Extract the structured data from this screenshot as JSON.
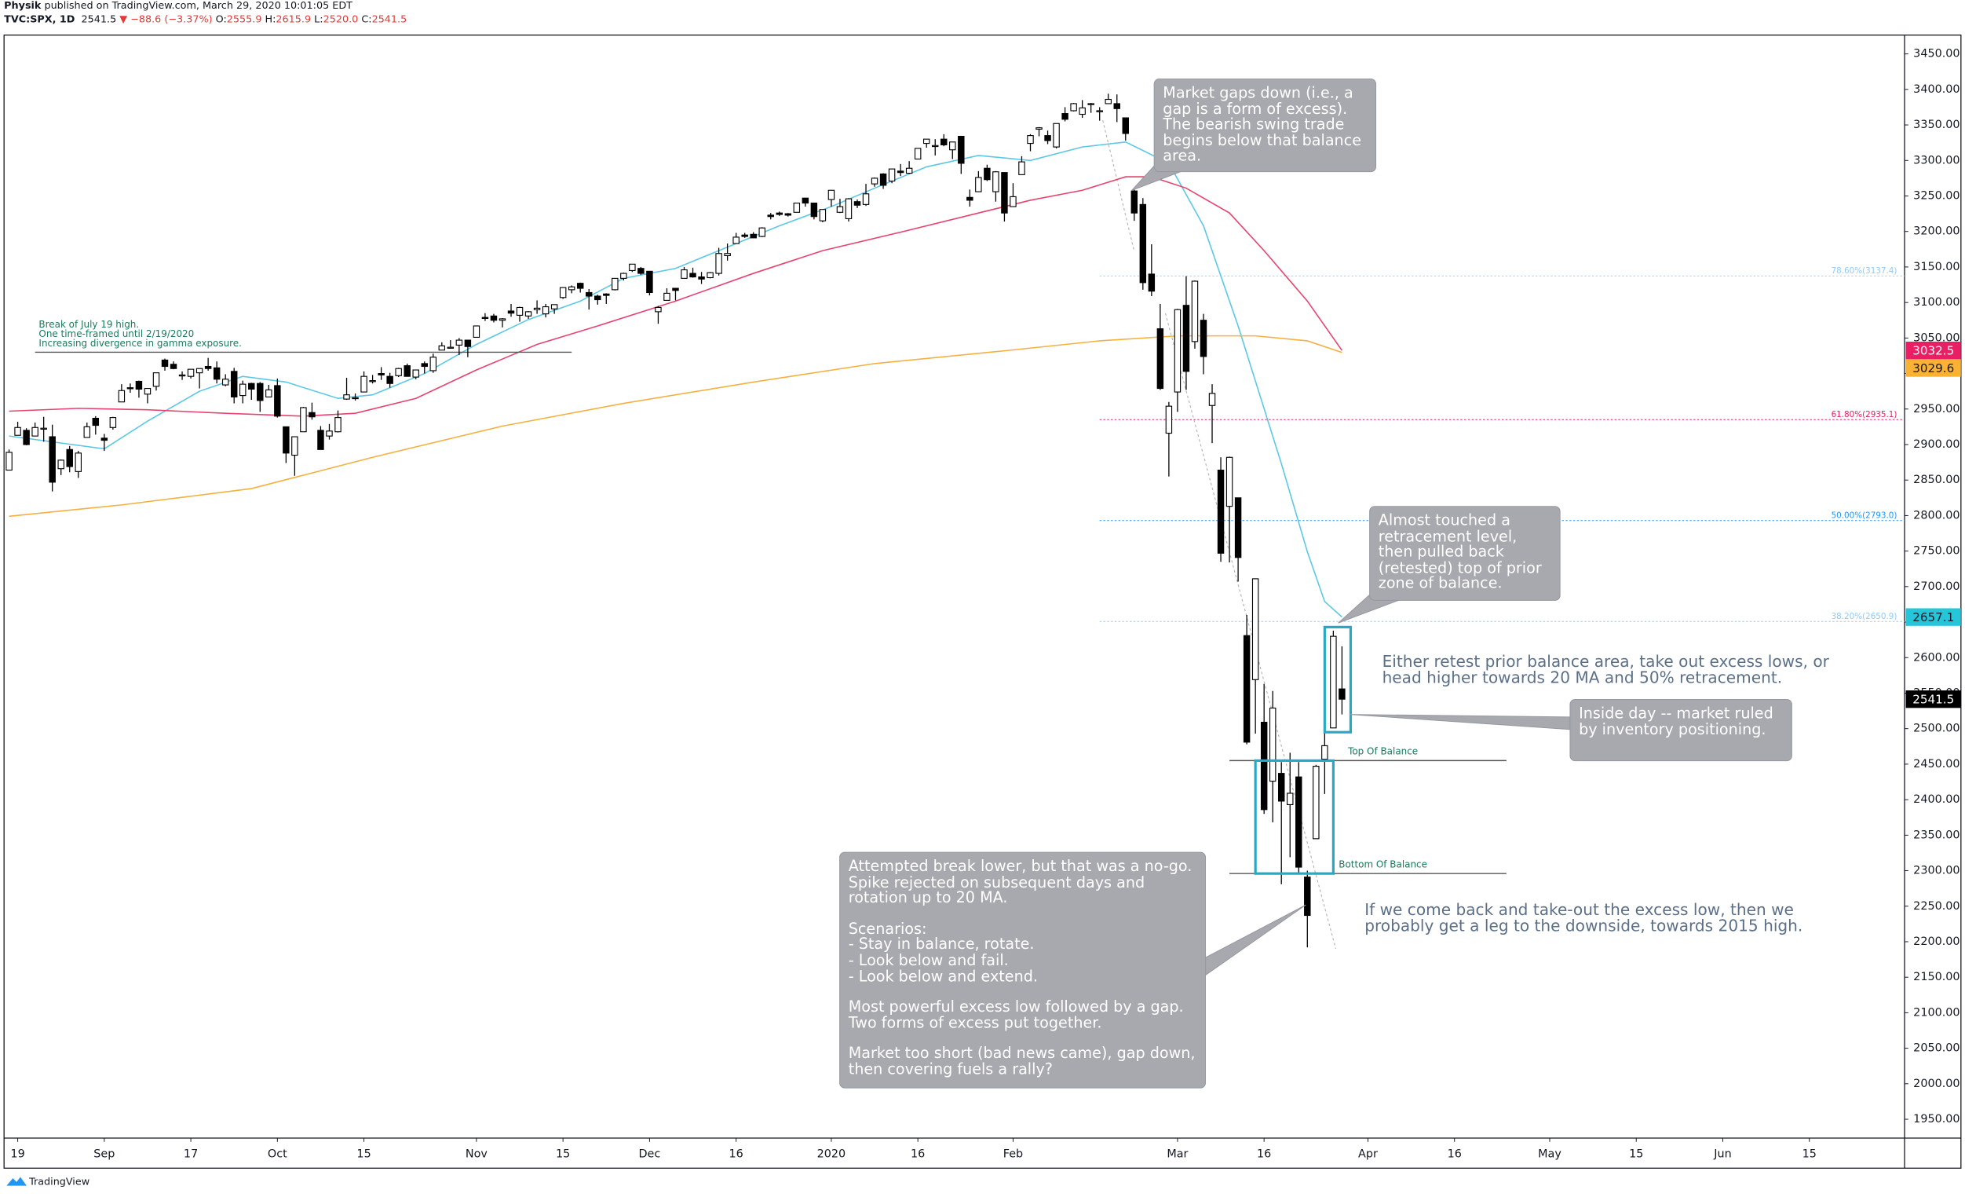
{
  "header": {
    "author": "Physik",
    "published": "published on TradingView.com, March 29, 2020 10:01:05 EDT",
    "symbol": "TVC:SPX, 1D",
    "last": "2541.5",
    "change": "▼ −88.6 (−3.37%)",
    "ohlc": [
      {
        "label": "O:",
        "value": "2555.9"
      },
      {
        "label": "H:",
        "value": "2615.9"
      },
      {
        "label": "L:",
        "value": "2520.0"
      },
      {
        "label": "C:",
        "value": "2541.5"
      }
    ]
  },
  "footer": {
    "brand": "TradingView"
  },
  "chart_data": {
    "type": "candlestick",
    "up_color": "#ffffff",
    "down_color": "#000000",
    "border_color": "#000000",
    "x": [
      0,
      1,
      2,
      3,
      4,
      5,
      6,
      7,
      8,
      9,
      10,
      11,
      12,
      13,
      14,
      15,
      16,
      17,
      18,
      19,
      20,
      21,
      22,
      23,
      24,
      25,
      26,
      27,
      28,
      29,
      30,
      31,
      32,
      33,
      34,
      35,
      36,
      37,
      38,
      39,
      40,
      41,
      42,
      43,
      44,
      45,
      46,
      47,
      48,
      49,
      50,
      51,
      52,
      53,
      54,
      55,
      56,
      57,
      58,
      59,
      60,
      61,
      62,
      63,
      64,
      65,
      66,
      67,
      68,
      69,
      70,
      71,
      72,
      73,
      74,
      75,
      76,
      77,
      78,
      79,
      80,
      81,
      82,
      83,
      84,
      85,
      86,
      87,
      88,
      89,
      90,
      91,
      92,
      93,
      94,
      95,
      96,
      97,
      98,
      99,
      100,
      101,
      102,
      103,
      104,
      105,
      106,
      107,
      108,
      109,
      110,
      111,
      112,
      113,
      114,
      115,
      116,
      117,
      118,
      119,
      120,
      121,
      122,
      123,
      124,
      125,
      126,
      127,
      128,
      129,
      130,
      131,
      132,
      133,
      134,
      135,
      136,
      137,
      138,
      139,
      140,
      141,
      142,
      143,
      144,
      145,
      146,
      147,
      148,
      149,
      150,
      151,
      152,
      153,
      154
    ],
    "open": [
      2864,
      2913,
      2920,
      2912,
      2923,
      2911,
      2866,
      2893,
      2862,
      2910,
      2937,
      2909,
      2924,
      2960,
      2980,
      2989,
      2971,
      2982,
      3019,
      3013,
      2997,
      2996,
      3001,
      3010,
      3008,
      2984,
      3003,
      2969,
      2986,
      2986,
      2967,
      2983,
      2925,
      2885,
      2918,
      2945,
      2920,
      2912,
      2918,
      2964,
      2966,
      2974,
      2990,
      3000,
      2996,
      2997,
      3011,
      2995,
      3014,
      3004,
      3033,
      3036,
      3040,
      3047,
      3051,
      3079,
      3081,
      3075,
      3088,
      3082,
      3081,
      3090,
      3084,
      3091,
      3107,
      3118,
      3127,
      3114,
      3109,
      3112,
      3118,
      3134,
      3145,
      3148,
      3144,
      3087,
      3103,
      3120,
      3134,
      3141,
      3136,
      3135,
      3141,
      3166,
      3183,
      3195,
      3196,
      3193,
      3223,
      3226,
      3225,
      3227,
      3247,
      3240,
      3215,
      3245,
      3227,
      3218,
      3242,
      3238,
      3267,
      3281,
      3271,
      3285,
      3282,
      3302,
      3324,
      3321,
      3330,
      3315,
      3334,
      3248,
      3256,
      3289,
      3256,
      3283,
      3235,
      3280,
      3324,
      3344,
      3335,
      3319,
      3366,
      3370,
      3365,
      3379,
      3369,
      3380,
      3380,
      3360,
      3257,
      3238,
      3140,
      3063,
      2916,
      2974,
      3096,
      3045,
      3075,
      2955,
      2864,
      2813,
      2825,
      2631,
      2569,
      2509,
      2426,
      2437,
      2393,
      2432,
      2291,
      2345,
      2457,
      2501,
      2555.9
    ],
    "high": [
      2893,
      2932,
      2923,
      2931,
      2939,
      2928,
      2879,
      2898,
      2891,
      2931,
      2940,
      2915,
      2939,
      2985,
      2986,
      2990,
      2979,
      3001,
      3021,
      3017,
      3003,
      3006,
      3007,
      3022,
      3017,
      2999,
      3008,
      2990,
      2987,
      2988,
      2984,
      2993,
      2925,
      2911,
      2953,
      2959,
      2926,
      2929,
      2948,
      2994,
      2972,
      3003,
      2998,
      3009,
      3001,
      3008,
      3014,
      3005,
      3017,
      3028,
      3044,
      3047,
      3050,
      3047,
      3067,
      3085,
      3084,
      3078,
      3098,
      3094,
      3088,
      3103,
      3098,
      3097,
      3121,
      3124,
      3128,
      3119,
      3111,
      3113,
      3134,
      3142,
      3154,
      3150,
      3144,
      3095,
      3120,
      3120,
      3150,
      3149,
      3143,
      3143,
      3177,
      3183,
      3198,
      3198,
      3199,
      3206,
      3226,
      3228,
      3226,
      3240,
      3247,
      3240,
      3231,
      3258,
      3246,
      3247,
      3245,
      3267,
      3276,
      3282,
      3288,
      3295,
      3299,
      3317,
      3330,
      3330,
      3337,
      3326,
      3334,
      3259,
      3285,
      3294,
      3285,
      3283,
      3268,
      3306,
      3337,
      3347,
      3342,
      3352,
      3375,
      3381,
      3385,
      3381,
      3375,
      3394,
      3393,
      3360,
      3259,
      3247,
      3182,
      3098,
      2960,
      3091,
      3137,
      3131,
      3084,
      2985,
      2882,
      2883,
      2825,
      2660,
      2711,
      2563,
      2553,
      2453,
      2466,
      2453,
      2300,
      2449,
      2572,
      2638,
      2615.9
    ],
    "low": [
      2864,
      2913,
      2899,
      2912,
      2904,
      2834,
      2857,
      2861,
      2853,
      2910,
      2914,
      2891,
      2921,
      2960,
      2973,
      2966,
      2958,
      2976,
      3004,
      3006,
      2991,
      2993,
      2979,
      3004,
      2986,
      2982,
      2958,
      2958,
      2963,
      2946,
      2967,
      2938,
      2874,
      2856,
      2918,
      2935,
      2893,
      2907,
      2917,
      2963,
      2962,
      2974,
      2986,
      2991,
      2980,
      2995,
      2996,
      2992,
      3000,
      3001,
      3033,
      3035,
      3026,
      3023,
      3051,
      3074,
      3072,
      3065,
      3080,
      3073,
      3077,
      3084,
      3079,
      3084,
      3105,
      3113,
      3114,
      3090,
      3097,
      3098,
      3117,
      3131,
      3143,
      3139,
      3110,
      3070,
      3103,
      3103,
      3134,
      3135,
      3126,
      3134,
      3138,
      3159,
      3183,
      3191,
      3191,
      3192,
      3217,
      3222,
      3221,
      3227,
      3235,
      3217,
      3213,
      3235,
      3226,
      3214,
      3233,
      3236,
      3263,
      3260,
      3268,
      3278,
      3281,
      3302,
      3318,
      3307,
      3320,
      3302,
      3281,
      3235,
      3256,
      3271,
      3242,
      3214,
      3235,
      3280,
      3313,
      3334,
      3323,
      3317,
      3355,
      3369,
      3360,
      3367,
      3356,
      3380,
      3354,
      3328,
      3215,
      3118,
      3109,
      2977,
      2855,
      2946,
      2977,
      3035,
      2999,
      2902,
      2735,
      2734,
      2707,
      2478,
      2493,
      2380,
      2368,
      2281,
      2319,
      2295,
      2192,
      2345,
      2408,
      2501,
      2520
    ],
    "close": [
      2889,
      2924,
      2900,
      2924,
      2923,
      2847,
      2878,
      2869,
      2888,
      2925,
      2927,
      2906,
      2938,
      2976,
      2979,
      2978,
      2979,
      3001,
      3010,
      3007,
      2998,
      3006,
      3007,
      3007,
      2992,
      2992,
      2967,
      2985,
      2978,
      2962,
      2977,
      2940,
      2888,
      2911,
      2952,
      2939,
      2893,
      2919,
      2938,
      2970,
      2966,
      2996,
      2990,
      2998,
      2986,
      3007,
      2996,
      3005,
      3010,
      3023,
      3039,
      3037,
      3047,
      3038,
      3067,
      3078,
      3075,
      3077,
      3085,
      3093,
      3087,
      3092,
      3094,
      3097,
      3121,
      3122,
      3120,
      3109,
      3104,
      3110,
      3134,
      3141,
      3154,
      3141,
      3114,
      3093,
      3113,
      3117,
      3146,
      3136,
      3133,
      3142,
      3169,
      3169,
      3192,
      3193,
      3191,
      3205,
      3221,
      3224,
      3223,
      3240,
      3240,
      3221,
      3231,
      3258,
      3235,
      3246,
      3237,
      3253,
      3275,
      3265,
      3288,
      3283,
      3289,
      3317,
      3330,
      3321,
      3322,
      3326,
      3296,
      3244,
      3276,
      3273,
      3284,
      3226,
      3249,
      3298,
      3335,
      3346,
      3328,
      3352,
      3358,
      3380,
      3374,
      3380,
      3370,
      3386,
      3373,
      3338,
      3226,
      3128,
      3116,
      2979,
      2954,
      3090,
      3003,
      3130,
      3024,
      2972,
      2747,
      2882,
      2741,
      2481,
      2711,
      2386,
      2529,
      2398,
      2409,
      2305,
      2237,
      2447,
      2476,
      2630,
      2541.5
    ],
    "xlim": [
      -0.29,
      219
    ],
    "ylim": [
      1923.5,
      3476.5
    ],
    "xticks": [
      {
        "value": 1,
        "label": "19"
      },
      {
        "value": 11,
        "label": "Sep"
      },
      {
        "value": 21,
        "label": "17"
      },
      {
        "value": 31,
        "label": "Oct"
      },
      {
        "value": 41,
        "label": "15"
      },
      {
        "value": 54,
        "label": "Nov"
      },
      {
        "value": 64,
        "label": "15"
      },
      {
        "value": 74,
        "label": "Dec"
      },
      {
        "value": 84,
        "label": "16"
      },
      {
        "value": 95,
        "label": "2020"
      },
      {
        "value": 105,
        "label": "16"
      },
      {
        "value": 116,
        "label": "Feb"
      },
      {
        "value": 135,
        "label": "Mar"
      },
      {
        "value": 145,
        "label": "16"
      },
      {
        "value": 157,
        "label": "Apr"
      },
      {
        "value": 167,
        "label": "16"
      },
      {
        "value": 178,
        "label": "May"
      },
      {
        "value": 188,
        "label": "15"
      },
      {
        "value": 198,
        "label": "Jun"
      },
      {
        "value": 208,
        "label": "15"
      }
    ],
    "yticks": [
      {
        "value": 1950,
        "label": "1950.00"
      },
      {
        "value": 2000,
        "label": "2000.00"
      },
      {
        "value": 2050,
        "label": "2050.00"
      },
      {
        "value": 2100,
        "label": "2100.00"
      },
      {
        "value": 2150,
        "label": "2150.00"
      },
      {
        "value": 2200,
        "label": "2200.00"
      },
      {
        "value": 2250,
        "label": "2250.00"
      },
      {
        "value": 2300,
        "label": "2300.00"
      },
      {
        "value": 2350,
        "label": "2350.00"
      },
      {
        "value": 2400,
        "label": "2400.00"
      },
      {
        "value": 2450,
        "label": "2450.00"
      },
      {
        "value": 2500,
        "label": "2500.00"
      },
      {
        "value": 2550,
        "label": "2550.00"
      },
      {
        "value": 2600,
        "label": "2600.00"
      },
      {
        "value": 2650,
        "label": "2650.00"
      },
      {
        "value": 2700,
        "label": "2700.00"
      },
      {
        "value": 2750,
        "label": "2750.00"
      },
      {
        "value": 2800,
        "label": "2800.00"
      },
      {
        "value": 2850,
        "label": "2850.00"
      },
      {
        "value": 2900,
        "label": "2900.00"
      },
      {
        "value": 2950,
        "label": "2950.00"
      },
      {
        "value": 3000,
        "label": "3000.00"
      },
      {
        "value": 3050,
        "label": "3050.00"
      },
      {
        "value": 3100,
        "label": "3100.00"
      },
      {
        "value": 3150,
        "label": "3150.00"
      },
      {
        "value": 3200,
        "label": "3200.00"
      },
      {
        "value": 3250,
        "label": "3250.00"
      },
      {
        "value": 3300,
        "label": "3300.00"
      },
      {
        "value": 3350,
        "label": "3350.00"
      },
      {
        "value": 3400,
        "label": "3400.00"
      },
      {
        "value": 3450,
        "label": "3450.00"
      }
    ],
    "grid": false,
    "moving_averages": [
      {
        "color": "#5bc8e6",
        "x": [
          0,
          11,
          16,
          22,
          27,
          32,
          38,
          42,
          48,
          54,
          60,
          66,
          71,
          77,
          83,
          89,
          95,
          100,
          106,
          112,
          118,
          124,
          129,
          134,
          138,
          142,
          147,
          150,
          152,
          154
        ],
        "values": [
          2912,
          2894,
          2933,
          2975,
          2996,
          2988,
          2965,
          2970,
          3000,
          3041,
          3076,
          3102,
          3134,
          3148,
          3178,
          3208,
          3235,
          3261,
          3291,
          3307,
          3300,
          3319,
          3326,
          3296,
          3208,
          3067,
          2873,
          2749,
          2679,
          2657.1
        ]
      },
      {
        "color": "#e8436f",
        "x": [
          0,
          8,
          16,
          25,
          34,
          40,
          47,
          54,
          61,
          68,
          77,
          86,
          94,
          103,
          112,
          118,
          124,
          129,
          132,
          136,
          141,
          145,
          150,
          154
        ],
        "values": [
          2947,
          2951,
          2949,
          2944,
          2940,
          2944,
          2965,
          3005,
          3041,
          3067,
          3102,
          3141,
          3173,
          3199,
          3226,
          3244,
          3258,
          3277,
          3277,
          3261,
          3226,
          3173,
          3102,
          3032.5
        ]
      },
      {
        "color": "#f5b041",
        "x": [
          0,
          13,
          28,
          42,
          57,
          71,
          86,
          100,
          115,
          126,
          135,
          144,
          150,
          154
        ],
        "values": [
          2799,
          2815,
          2838,
          2882,
          2926,
          2958,
          2988,
          3014,
          3032,
          3046,
          3053,
          3053,
          3046,
          3029.6
        ]
      }
    ],
    "price_labels": [
      {
        "value": 3032.5,
        "color": "#e91e63",
        "text_color": "#ffffff"
      },
      {
        "value": 3029.6,
        "color": "#f9b233",
        "text_color": "#131722"
      },
      {
        "value": 2657.1,
        "color": "#26c6da",
        "text_color": "#131722"
      },
      {
        "value": 2541.5,
        "color": "#000000",
        "text_color": "#ffffff"
      }
    ],
    "fib_start": 126,
    "fib_levels": [
      {
        "label": "78.60%(3137.4)",
        "value": 3137.4,
        "color": "#90caf9"
      },
      {
        "label": "61.80%(2935.1)",
        "value": 2935.1,
        "color": "#e91e63"
      },
      {
        "label": "50.00%(2793.0)",
        "value": 2793.0,
        "color": "#2196f3"
      },
      {
        "label": "38.20%(2650.9)",
        "value": 2650.9,
        "color": "#90caf9"
      }
    ],
    "levels": [
      {
        "value": 3030,
        "x": [
          3,
          65
        ],
        "color": "#555555",
        "text": [
          "Break of July 19 high.",
          "One time-framed until 2/19/2020",
          "Increasing divergence in gamma exposure."
        ],
        "text_color": "#1b7a5a"
      },
      {
        "value": 2455,
        "x": [
          141,
          173
        ],
        "color": "#555555",
        "label": "Top Of Balance",
        "text_color": "#1b7a5a"
      },
      {
        "value": 2296,
        "x": [
          141,
          173
        ],
        "color": "#555555",
        "label": "Bottom Of Balance",
        "text_color": "#1b7a5a"
      }
    ],
    "boxes": [
      {
        "x": [
          144,
          153
        ],
        "y": [
          2296,
          2455
        ],
        "color": "#26a9c4"
      },
      {
        "x": [
          152,
          155
        ],
        "y": [
          2495,
          2643
        ],
        "color": "#26a9c4"
      }
    ],
    "annotations": [
      {
        "text": [
          "Market gaps down (i.e., a gap is a form of excess). The bearish swing trade begins below that balance area."
        ]
      },
      {
        "text": [
          "Almost touched a retracement level, then pulled back (retested) top of prior zone of balance."
        ]
      },
      {
        "text": [
          "Inside day -- market ruled by inventory positioning."
        ]
      },
      {
        "text": [
          "Attempted break lower, but that was a no-go. Spike rejected on subsequent days and rotation up to 20 MA.",
          "Scenarios:\n- Stay in balance, rotate.\n- Look below and fail.\n- Look below and extend.",
          "Most powerful excess low followed by a gap. Two forms of excess put together.",
          "Market too short (bad news came), gap down, then covering fuels a rally?"
        ]
      }
    ],
    "notes": [
      "Either retest prior balance area, take out excess lows, or head higher towards 20 MA and 50% retracement.",
      "If we come back and take-out the excess low, then we probably get a leg to the downside, towards 2015 high."
    ]
  }
}
